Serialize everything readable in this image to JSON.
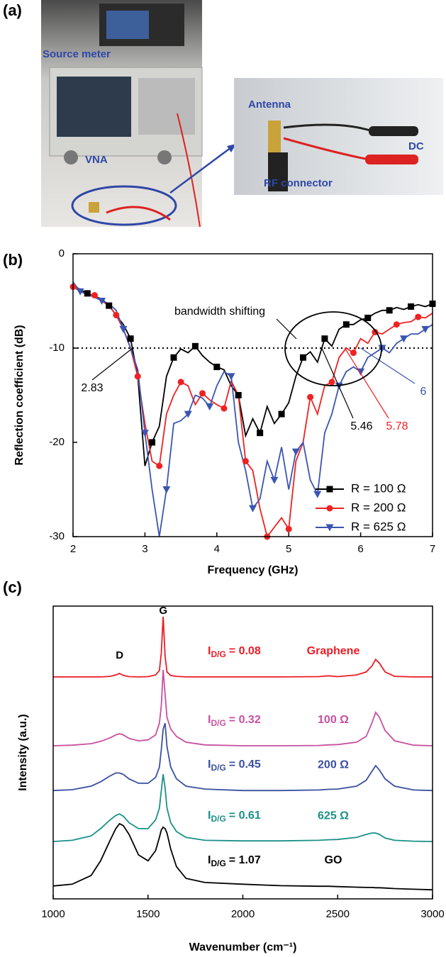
{
  "photo": {
    "panel_label": "(a)",
    "labels": [
      "Source meter",
      "VNA",
      "Antenna",
      "DC",
      "RF connector"
    ]
  },
  "chart_data": [
    {
      "type": "line",
      "panel_label": "(b)",
      "x_label": "Frequency (GHz)",
      "y_label": "Reflection coefficient (dB)",
      "xlim": [
        2,
        7
      ],
      "xticks": [
        2,
        3,
        4,
        5,
        6,
        7
      ],
      "ylim": [
        -30,
        0
      ],
      "yticks": [
        -30,
        -20,
        -10,
        0
      ],
      "legend": "lower right",
      "hline": -10,
      "x": [
        2.0,
        2.1,
        2.2,
        2.3,
        2.4,
        2.5,
        2.6,
        2.7,
        2.8,
        2.9,
        3.0,
        3.1,
        3.2,
        3.3,
        3.4,
        3.5,
        3.6,
        3.7,
        3.8,
        3.9,
        4.0,
        4.1,
        4.2,
        4.3,
        4.4,
        4.5,
        4.6,
        4.7,
        4.8,
        4.9,
        5.0,
        5.1,
        5.2,
        5.3,
        5.4,
        5.5,
        5.6,
        5.7,
        5.8,
        5.9,
        6.0,
        6.1,
        6.2,
        6.3,
        6.4,
        6.5,
        6.6,
        6.7,
        6.8,
        6.9,
        7.0
      ],
      "series": [
        {
          "name": "R = 100 Ω",
          "color": "#000000",
          "marker": "square",
          "values": [
            -3.3,
            -3.8,
            -4.2,
            -4.5,
            -4.8,
            -5.5,
            -6.5,
            -7.5,
            -9,
            -13,
            -22.5,
            -20,
            -18.3,
            -13,
            -11,
            -10.1,
            -10.5,
            -9.8,
            -10.8,
            -11.5,
            -12,
            -12.3,
            -14,
            -15,
            -19.3,
            -17.5,
            -19,
            -16.2,
            -18,
            -17,
            -15.8,
            -13,
            -11,
            -10.4,
            -11.5,
            -9,
            -9.8,
            -8,
            -7.5,
            -7.5,
            -7,
            -6.8,
            -6.3,
            -6,
            -6,
            -5.7,
            -5.9,
            -5.6,
            -5.4,
            -5.6,
            -5.3
          ]
        },
        {
          "name": "R = 200 Ω",
          "color": "#ee2222",
          "marker": "circle",
          "values": [
            -3.5,
            -4,
            -4.3,
            -4.4,
            -5,
            -5.5,
            -6.5,
            -8,
            -10,
            -13,
            -18,
            -22,
            -22.5,
            -17,
            -15,
            -13.6,
            -14,
            -16,
            -14.8,
            -15.5,
            -16,
            -16.4,
            -13.5,
            -15,
            -22,
            -23,
            -27,
            -30,
            -29,
            -28,
            -29.2,
            -22,
            -20,
            -15.2,
            -17,
            -14,
            -13.6,
            -11,
            -10,
            -10.5,
            -9,
            -9.5,
            -8.3,
            -8.5,
            -8,
            -7.5,
            -7.3,
            -7.2,
            -6.7,
            -6.8,
            -6.3
          ]
        },
        {
          "name": "R = 625 Ω",
          "color": "#3a55b0",
          "marker": "triangle-down",
          "values": [
            -3,
            -4,
            -4.3,
            -4.6,
            -5,
            -5.3,
            -6,
            -8,
            -10,
            -12.3,
            -19,
            -25,
            -30,
            -25,
            -18,
            -17.7,
            -17,
            -15,
            -15.3,
            -16.2,
            -14,
            -12.5,
            -13,
            -20,
            -23,
            -27,
            -26,
            -22,
            -24,
            -20.5,
            -25,
            -21,
            -20,
            -24,
            -25.5,
            -19,
            -17,
            -14,
            -12.5,
            -12,
            -12.5,
            -11,
            -10.5,
            -10,
            -10.5,
            -9.5,
            -9,
            -8.5,
            -8.5,
            -8,
            -7.5
          ]
        }
      ],
      "annotations": [
        {
          "text": "2.83",
          "x": 2.83,
          "color": "#000000"
        },
        {
          "text": "5.46",
          "x": 5.46,
          "color": "#000000"
        },
        {
          "text": "5.78",
          "x": 5.78,
          "color": "#ee2222"
        },
        {
          "text": "6",
          "x": 6,
          "color": "#3a55b0"
        }
      ],
      "callout": "bandwidth shifting"
    },
    {
      "type": "line",
      "panel_label": "(c)",
      "x_label": "Wavenumber (cm⁻¹)",
      "y_label": "Intensity (a.u.)",
      "xlim": [
        1000,
        3000
      ],
      "xticks": [
        1000,
        1500,
        2000,
        2500,
        3000
      ],
      "ylim": [
        0,
        100
      ],
      "peak_labels": [
        {
          "text": "D",
          "x": 1350
        },
        {
          "text": "G",
          "x": 1580
        }
      ],
      "x": [
        1000,
        1100,
        1200,
        1250,
        1300,
        1330,
        1350,
        1370,
        1400,
        1450,
        1500,
        1540,
        1560,
        1570,
        1580,
        1590,
        1600,
        1620,
        1650,
        1700,
        1800,
        2000,
        2200,
        2400,
        2450,
        2500,
        2600,
        2650,
        2680,
        2700,
        2720,
        2750,
        2800,
        2900,
        3000
      ],
      "series": [
        {
          "name": "Graphene",
          "color": "#ed1c24",
          "ratio": {
            "symbol": "I",
            "subscript": "D/G",
            "text": "= 0.08"
          },
          "values": [
            75.8,
            75.8,
            75.8,
            75.8,
            76,
            76.5,
            77,
            76.3,
            75.9,
            75.8,
            75.9,
            76.5,
            78,
            84,
            96.4,
            83,
            77.5,
            76.3,
            76,
            75.8,
            75.8,
            75.8,
            75.8,
            75.9,
            76.2,
            75.9,
            76.5,
            77.5,
            79.5,
            81.8,
            80.5,
            77.5,
            76,
            75.8,
            75.8
          ]
        },
        {
          "name": "100 Ω",
          "color": "#c8509f",
          "ratio": {
            "symbol": "I",
            "subscript": "D/G",
            "text": "= 0.32"
          },
          "values": [
            52.3,
            52.5,
            53,
            53.8,
            55,
            56,
            56.4,
            56,
            54.8,
            54,
            54.3,
            56,
            60,
            66,
            78.2,
            70,
            62,
            58,
            55.5,
            53.5,
            52.6,
            52.3,
            52.3,
            52.4,
            52.6,
            52.7,
            53.5,
            55.5,
            60,
            63.7,
            62,
            57.5,
            54,
            52.5,
            52.3
          ]
        },
        {
          "name": "200 Ω",
          "color": "#3a4fa0",
          "ratio": {
            "symbol": "I",
            "subscript": "D/G",
            "text": "= 0.45"
          },
          "values": [
            37,
            37.3,
            38.5,
            40,
            42,
            43,
            43,
            42.5,
            41,
            39.5,
            39.5,
            41.5,
            45,
            51,
            58,
            60,
            52,
            45,
            41,
            38.5,
            37.5,
            37,
            37,
            37.2,
            37.4,
            37.5,
            38.5,
            40.5,
            43.5,
            45.5,
            44,
            41,
            38.5,
            37.2,
            37
          ]
        },
        {
          "name": "625 Ω",
          "color": "#1a9088",
          "ratio": {
            "symbol": "I",
            "subscript": "D/G",
            "text": "= 0.61"
          },
          "values": [
            19.6,
            20,
            21.5,
            24,
            27,
            28.5,
            29,
            28.2,
            26,
            24,
            24,
            27,
            31,
            37,
            42.6,
            38,
            31,
            26,
            23,
            21,
            20,
            19.8,
            19.8,
            20,
            20.2,
            20.3,
            21,
            22,
            22.5,
            22.5,
            22,
            20.8,
            20,
            19.7,
            19.6
          ]
        },
        {
          "name": "GO",
          "color": "#000000",
          "ratio": {
            "symbol": "I",
            "subscript": "D/G",
            "text": "= 1.07"
          },
          "values": [
            4.4,
            5,
            8,
            13,
            20,
            24,
            25.7,
            25,
            22,
            15,
            13,
            16.5,
            21,
            23.5,
            24.5,
            24,
            22.5,
            17,
            11,
            7,
            5.6,
            5,
            4.5,
            4.3,
            4.3,
            4.2,
            4,
            3.9,
            3.9,
            3.8,
            3.8,
            3.7,
            3.5,
            3.3,
            3.1
          ]
        }
      ]
    }
  ]
}
